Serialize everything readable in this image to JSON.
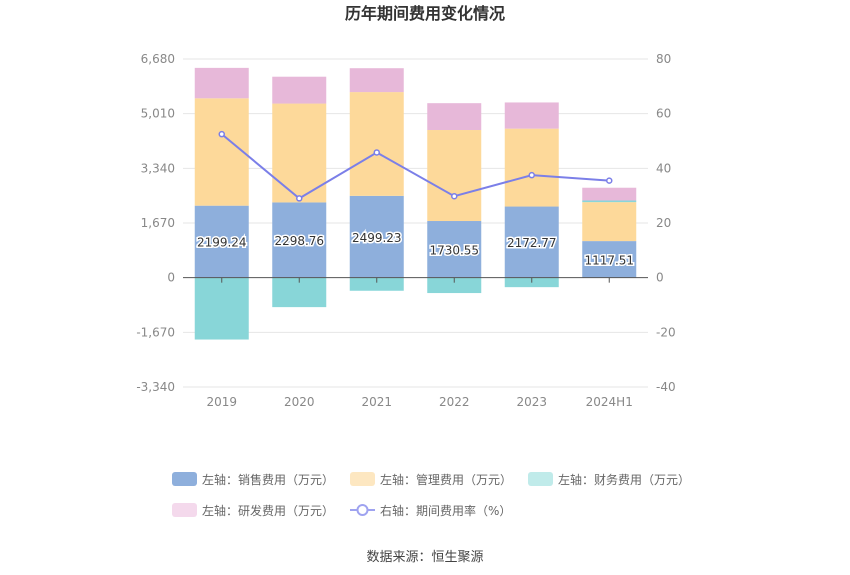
{
  "chart_data": {
    "type": "bar",
    "stacked": true,
    "title": "历年期间费用变化情况",
    "categories": [
      "2019",
      "2020",
      "2021",
      "2022",
      "2023",
      "2024H1"
    ],
    "left_axis": {
      "min": -3340,
      "max": 6680,
      "ticks": [
        "6,680",
        "5,010",
        "3,340",
        "1,670",
        "0",
        "-1,670",
        "-3,340"
      ],
      "tick_values": [
        6680,
        5010,
        3340,
        1670,
        0,
        -1670,
        -3340
      ]
    },
    "right_axis": {
      "min": -40,
      "max": 80,
      "ticks": [
        "80",
        "60",
        "40",
        "20",
        "0",
        "-20",
        "-40"
      ],
      "tick_values": [
        80,
        60,
        40,
        20,
        0,
        -20,
        -40
      ]
    },
    "series": [
      {
        "name": "左轴：销售费用（万元）",
        "axis": "left",
        "color": "#8eafdc",
        "values": [
          2199.24,
          2298.76,
          2499.23,
          1730.55,
          2172.77,
          1117.51
        ],
        "labels": [
          "2199.24",
          "2298.76",
          "2499.23",
          "1730.55",
          "2172.77",
          "1117.51"
        ]
      },
      {
        "name": "左轴：管理费用（万元）",
        "axis": "left",
        "color": "#fdd99a",
        "values": [
          3280,
          3020,
          3170,
          2780,
          2380,
          1190
        ]
      },
      {
        "name": "左轴：财务费用（万元）",
        "axis": "left",
        "color": "#88d6d8",
        "values": [
          -1890,
          -900,
          -400,
          -470,
          -290,
          50
        ]
      },
      {
        "name": "左轴：研发费用（万元）",
        "axis": "left",
        "color": "#e7b8d9",
        "values": [
          930,
          820,
          730,
          820,
          800,
          390
        ]
      },
      {
        "name": "右轴：期间费用率（%）",
        "axis": "right",
        "type": "line",
        "color": "#7b7fe8",
        "values": [
          52.5,
          29,
          45.8,
          29.8,
          37.5,
          35.5
        ]
      }
    ],
    "legend_position": "bottom",
    "grid": true
  },
  "legend": [
    {
      "label": "左轴：销售费用（万元）",
      "color": "#8eafdc",
      "kind": "bar"
    },
    {
      "label": "左轴：管理费用（万元）",
      "color": "#fde7c1",
      "kind": "bar"
    },
    {
      "label": "左轴：财务费用（万元）",
      "color": "#c0ebea",
      "kind": "bar"
    },
    {
      "label": "左轴：研发费用（万元）",
      "color": "#f4d9ec",
      "kind": "bar"
    },
    {
      "label": "右轴：期间费用率（%）",
      "color": "#9fa3f0",
      "kind": "line"
    }
  ],
  "source": "数据来源：恒生聚源"
}
